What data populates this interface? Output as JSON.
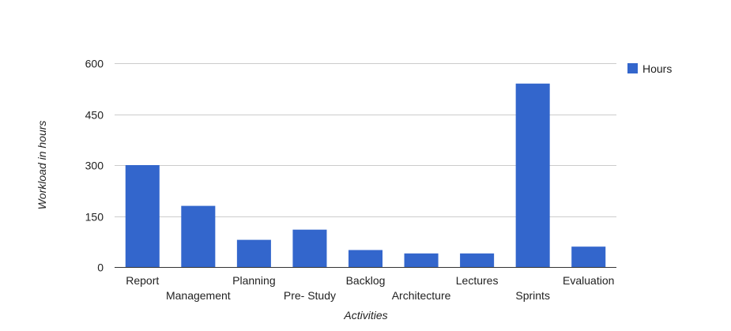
{
  "chart_data": {
    "type": "bar",
    "categories": [
      "Report",
      "Management",
      "Planning",
      "Pre- Study",
      "Backlog",
      "Architecture",
      "Lectures",
      "Sprints",
      "Evaluation"
    ],
    "series": [
      {
        "name": "Hours",
        "values": [
          300,
          180,
          80,
          110,
          50,
          40,
          40,
          540,
          60
        ],
        "color": "#3366cc"
      }
    ],
    "xlabel": "Activities",
    "ylabel": "Workload in hours",
    "ylim": [
      0,
      600
    ],
    "yticks": [
      "0",
      "150",
      "300",
      "450",
      "600"
    ],
    "grid": true,
    "legend_position": "right"
  }
}
